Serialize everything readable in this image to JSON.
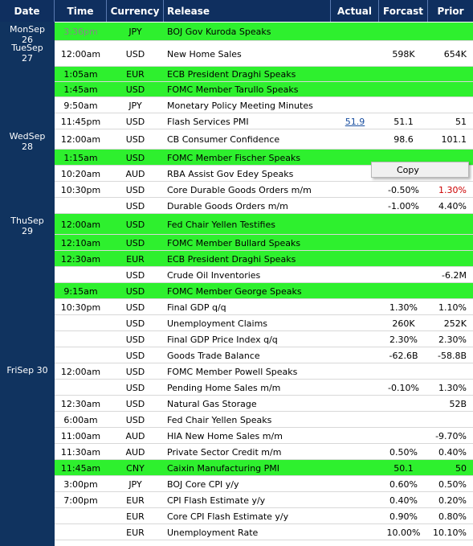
{
  "header": {
    "date": "Date",
    "time": "Time",
    "currency": "Currency",
    "release": "Release",
    "actual": "Actual",
    "forecast": "Forcast",
    "prior": "Prior"
  },
  "rows": [
    {
      "date": [
        "MonSep",
        "26"
      ],
      "time": "3:36pm",
      "time_color": "#888888",
      "currency": "JPY",
      "release": "BOJ Gov Kuroda Speaks",
      "highlight": true
    },
    {
      "date": [
        "TueSep",
        "27"
      ],
      "time": "12:00am",
      "currency": "USD",
      "release": "New Home Sales",
      "forecast": "598K",
      "prior": "654K"
    },
    {
      "time": "1:05am",
      "currency": "EUR",
      "release": "ECB President Draghi Speaks",
      "highlight": true
    },
    {
      "time": "1:45am",
      "currency": "USD",
      "release": "FOMC Member Tarullo Speaks",
      "highlight": true
    },
    {
      "time": "9:50am",
      "currency": "JPY",
      "release": "Monetary Policy Meeting Minutes"
    },
    {
      "time": "11:45pm",
      "currency": "USD",
      "release": "Flash Services PMI",
      "actual": "51.9",
      "forecast": "51.1",
      "prior": "51"
    },
    {
      "date": [
        "WedSep",
        "28"
      ],
      "time": "12:00am",
      "currency": "USD",
      "release": "CB Consumer Confidence",
      "forecast": "98.6",
      "prior": "101.1"
    },
    {
      "time": "1:15am",
      "currency": "USD",
      "release": "FOMC Member Fischer Speaks",
      "highlight": true
    },
    {
      "time": "10:20am",
      "currency": "AUD",
      "release": "RBA Assist Gov Edey Speaks"
    },
    {
      "time": "10:30pm",
      "currency": "USD",
      "release": "Core Durable Goods Orders m/m",
      "forecast": "-0.50%",
      "prior": "1.30%",
      "prior_color": "#cc0000"
    },
    {
      "currency": "USD",
      "release": "Durable Goods Orders m/m",
      "forecast": "-1.00%",
      "prior": "4.40%"
    },
    {
      "date": [
        "ThuSep",
        "29"
      ],
      "time": "12:00am",
      "currency": "USD",
      "release": "Fed Chair Yellen Testifies",
      "highlight": true
    },
    {
      "time": "12:10am",
      "currency": "USD",
      "release": "FOMC Member Bullard Speaks",
      "highlight": true
    },
    {
      "time": "12:30am",
      "currency": "EUR",
      "release": "ECB President Draghi Speaks",
      "highlight": true
    },
    {
      "currency": "USD",
      "release": "Crude Oil Inventories",
      "prior": "-6.2M"
    },
    {
      "time": "9:15am",
      "currency": "USD",
      "release": "FOMC Member George Speaks",
      "highlight": true
    },
    {
      "time": "10:30pm",
      "currency": "USD",
      "release": "Final GDP q/q",
      "forecast": "1.30%",
      "prior": "1.10%"
    },
    {
      "currency": "USD",
      "release": "Unemployment Claims",
      "forecast": "260K",
      "prior": "252K"
    },
    {
      "currency": "USD",
      "release": "Final GDP Price Index q/q",
      "forecast": "2.30%",
      "prior": "2.30%"
    },
    {
      "currency": "USD",
      "release": "Goods Trade Balance",
      "forecast": "-62.6B",
      "prior": "-58.8B"
    },
    {
      "date": [
        "FriSep 30"
      ],
      "time": "12:00am",
      "currency": "USD",
      "release": "FOMC Member Powell Speaks"
    },
    {
      "currency": "USD",
      "release": "Pending Home Sales m/m",
      "forecast": "-0.10%",
      "prior": "1.30%"
    },
    {
      "time": "12:30am",
      "currency": "USD",
      "release": "Natural Gas Storage",
      "prior": "52B"
    },
    {
      "time": "6:00am",
      "currency": "USD",
      "release": "Fed Chair Yellen Speaks"
    },
    {
      "time": "11:00am",
      "currency": "AUD",
      "release": "HIA New Home Sales m/m",
      "prior": "-9.70%"
    },
    {
      "time": "11:30am",
      "currency": "AUD",
      "release": "Private Sector Credit m/m",
      "forecast": "0.50%",
      "prior": "0.40%"
    },
    {
      "time": "11:45am",
      "currency": "CNY",
      "release": "Caixin Manufacturing PMI",
      "forecast": "50.1",
      "prior": "50",
      "highlight": true
    },
    {
      "time": "3:00pm",
      "currency": "JPY",
      "release": "BOJ Core CPI y/y",
      "forecast": "0.60%",
      "prior": "0.50%"
    },
    {
      "time": "7:00pm",
      "currency": "EUR",
      "release": "CPI Flash Estimate y/y",
      "forecast": "0.40%",
      "prior": "0.20%"
    },
    {
      "currency": "EUR",
      "release": "Core CPI Flash Estimate y/y",
      "forecast": "0.90%",
      "prior": "0.80%"
    },
    {
      "currency": "EUR",
      "release": "Unemployment Rate",
      "forecast": "10.00%",
      "prior": "10.10%"
    }
  ],
  "context_menu": {
    "item": "Copy"
  }
}
